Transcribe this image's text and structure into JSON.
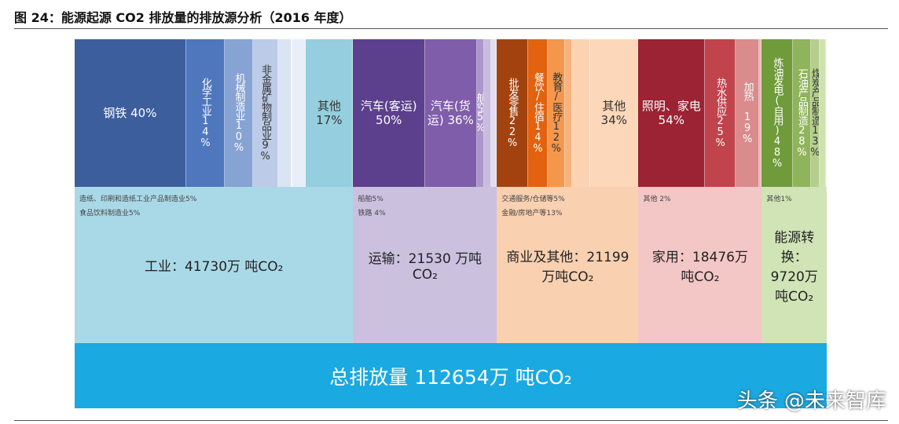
{
  "title": "图 24：能源起源 CO2 排放量的排放源分析（2016 年度）",
  "sectors": [
    {
      "label": "工业：41730万 吨CO₂",
      "total": 41730,
      "color": "#a9d9e7",
      "parts": [
        {
          "label": "钢铁 40%",
          "share": 40,
          "color": "#3c5e9c"
        },
        {
          "label": "化学工业14%",
          "share": 14,
          "color": "#4f77bd"
        },
        {
          "label": "机械制造业10%",
          "share": 10,
          "color": "#86a3d3"
        },
        {
          "label": "非金属矿物制品业9%",
          "share": 9,
          "color": "#bccbe7"
        },
        {
          "label": null,
          "share": 5,
          "color": "#dbe4f2"
        },
        {
          "label": null,
          "share": 5,
          "color": "#e9eef7"
        },
        {
          "label": "其他 17%",
          "share": 17,
          "color": "#95cfdf"
        }
      ],
      "notes": [
        "造纸、印刷和造纸工业产品制造业5%",
        "食品饮料制造业5%"
      ]
    },
    {
      "label": "运输：21530 万吨CO₂",
      "total": 21530,
      "color": "#cbc1df",
      "parts": [
        {
          "label": "汽车(客运) 50%",
          "share": 50,
          "color": "#5c408d"
        },
        {
          "label": "汽车(货运) 36%",
          "share": 36,
          "color": "#7f5daa"
        },
        {
          "label": "航空5%",
          "share": 5,
          "color": "#ab97ca"
        },
        {
          "label": null,
          "share": 5,
          "color": "#c9bcde"
        },
        {
          "label": null,
          "share": 4,
          "color": "#e4ddef"
        }
      ],
      "notes": [
        "船舶5%",
        "铁路 4%"
      ]
    },
    {
      "label": "商业及其他：21199万吨CO₂",
      "total": 21199,
      "color": "#f9d0b0",
      "parts": [
        {
          "label": "批发零售22%",
          "share": 22,
          "color": "#a2430f"
        },
        {
          "label": "餐饮/住宿14%",
          "share": 14,
          "color": "#e2620f"
        },
        {
          "label": "教育/医疗12%",
          "share": 12,
          "color": "#f4974c"
        },
        {
          "label": null,
          "share": 5,
          "color": "#f8b27d"
        },
        {
          "label": null,
          "share": 13,
          "color": "#fbd3b2"
        },
        {
          "label": "其他 34%",
          "share": 34,
          "color": "#fcd7ba"
        }
      ],
      "notes": [
        "交通服务/仓储等5%",
        "金融/房地产等13%"
      ]
    },
    {
      "label": "家用：18476万 吨CO₂",
      "total": 18476,
      "color": "#f3c7c5",
      "parts": [
        {
          "label": "照明、家电 54%",
          "share": 54,
          "color": "#9b2333"
        },
        {
          "label": "热水供应25%",
          "share": 25,
          "color": "#c1434b"
        },
        {
          "label": "加热 19%",
          "share": 19,
          "color": "#da8b8b"
        },
        {
          "label": null,
          "share": 2,
          "color": "#e8b6b6"
        }
      ],
      "notes": [
        "其他 2%"
      ]
    },
    {
      "label": "能源转换：9720万吨CO₂",
      "total": 9720,
      "color": "#d0e4b6",
      "parts": [
        {
          "label": "炼油发电(自用)48%",
          "share": 48,
          "color": "#6f9b3b"
        },
        {
          "label": "石油产品制造28%",
          "share": 28,
          "color": "#90b45b"
        },
        {
          "label": "煤炭产品制造13%",
          "share": 13,
          "color": "#b5ce8b"
        },
        {
          "label": null,
          "share": 10,
          "color": "#d0e1b1"
        },
        {
          "label": null,
          "share": 1,
          "color": "#e3edd3"
        }
      ],
      "notes": [
        "其他1%"
      ]
    }
  ],
  "total_label": "总排放量 112654万 吨CO₂",
  "watermark": "头条 @未来智库"
}
